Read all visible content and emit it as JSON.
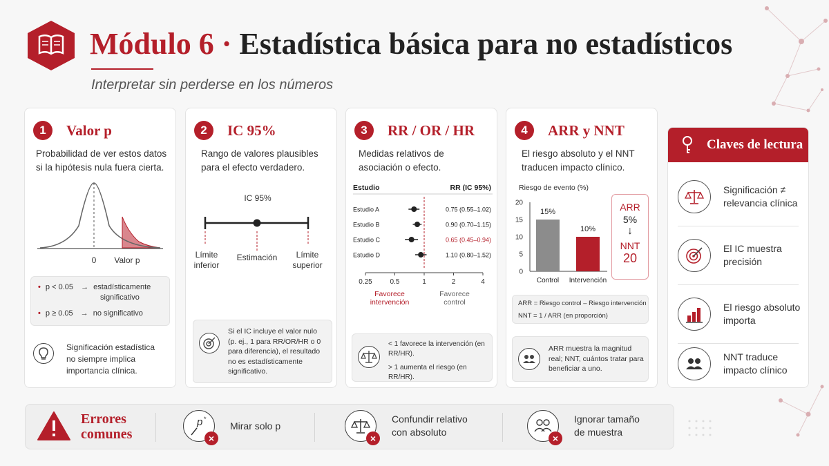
{
  "header": {
    "module": "Módulo 6",
    "separator": "·",
    "title": "Estadística básica para no estadísticos",
    "subtitle": "Interpretar sin perderse en los números",
    "icon": "open-book-icon"
  },
  "colors": {
    "accent": "#b41f2a",
    "grey_bar": "#8c8c8c"
  },
  "cards": [
    {
      "number": "1",
      "title": "Valor p",
      "description": "Probabilidad de ver estos datos si la hipótesis nula fuera cierta.",
      "axis_zero": "0",
      "axis_p": "Valor p",
      "rules": [
        {
          "condition": "p < 0.05",
          "arrow": "→",
          "result_line1": "estadísticamente",
          "result_line2": "significativo"
        },
        {
          "condition": "p ≥ 0.05",
          "arrow": "→",
          "result_line1": "no significativo",
          "result_line2": ""
        }
      ],
      "note": "Significación estadística no siempre implica importancia clínica.",
      "note_icon": "lightbulb-icon"
    },
    {
      "number": "2",
      "title": "IC 95%",
      "description": "Rango de valores plausibles para el efecto verdadero.",
      "ci_label": "IC 95%",
      "lower_label_1": "Límite",
      "lower_label_2": "inferior",
      "estimate_label": "Estimación",
      "upper_label_1": "Límite",
      "upper_label_2": "superior",
      "note": "Si el IC incluye el valor nulo (p. ej., 1 para RR/OR/HR o 0 para diferencia), el resultado no es estadísticamente significativo.",
      "note_icon": "target-icon"
    },
    {
      "number": "3",
      "title": "RR / OR / HR",
      "description": "Medidas relativos de asociación o efecto.",
      "col_study": "Estudio",
      "col_effect": "RR (IC 95%)",
      "ticks": [
        "0.25",
        "0.5",
        "1",
        "2",
        "4"
      ],
      "favors_left_1": "Favorece",
      "favors_left_2": "intervención",
      "favors_right_1": "Favorece",
      "favors_right_2": "control",
      "notes": [
        "< 1 favorece la intervención (en RR/HR).",
        "> 1 aumenta el riesgo (en RR/HR)."
      ],
      "note_icon": "balance-scale-icon"
    },
    {
      "number": "4",
      "title": "ARR y NNT",
      "description": "El riesgo absoluto y el NNT traducen impacto clínico.",
      "arr_label": "ARR",
      "arr_value": "5%",
      "arr_arrow": "↓",
      "nnt_label": "NNT",
      "nnt_value": "20",
      "formula_1": "ARR = Riesgo control – Riesgo intervención",
      "formula_2": "NNT = 1 / ARR (en proporción)",
      "note": "ARR muestra la magnitud real; NNT, cuántos tratar para beneficiar a uno.",
      "note_icon": "people-icon"
    }
  ],
  "chart_data": [
    {
      "type": "scatter",
      "subtype": "forest-plot",
      "scale": "log",
      "xlim": [
        0.25,
        4
      ],
      "null_value": 1,
      "studies": [
        {
          "name": "Estudio A",
          "estimate": 0.75,
          "lower": 0.55,
          "upper": 1.02,
          "label": "0.75 (0.55–1.02)",
          "highlight": false
        },
        {
          "name": "Estudio B",
          "estimate": 0.9,
          "lower": 0.7,
          "upper": 1.15,
          "label": "0.90 (0.70–1.15)",
          "highlight": false
        },
        {
          "name": "Estudio C",
          "estimate": 0.65,
          "lower": 0.45,
          "upper": 0.94,
          "label": "0.65 (0.45–0.94)",
          "highlight": true
        },
        {
          "name": "Estudio D",
          "estimate": 1.1,
          "lower": 0.8,
          "upper": 1.52,
          "label": "1.10 (0.80–1.52)",
          "highlight": false
        }
      ]
    },
    {
      "type": "bar",
      "title": "Riesgo de evento (%)",
      "categories": [
        "Control",
        "Intervención"
      ],
      "values": [
        15,
        10
      ],
      "value_labels": [
        "15%",
        "10%"
      ],
      "ylim": [
        0,
        20
      ],
      "yticks": [
        "0",
        "5",
        "10",
        "15",
        "20"
      ],
      "colors": [
        "#8c8c8c",
        "#b41f2a"
      ]
    }
  ],
  "claves": {
    "title": "Claves de lectura",
    "icon": "key-icon",
    "items": [
      {
        "text": "Significación ≠ relevancia clínica",
        "icon": "balance-scale-icon"
      },
      {
        "text": "El IC muestra precisión",
        "icon": "target-icon"
      },
      {
        "text": "El riesgo absoluto importa",
        "icon": "bar-chart-icon"
      },
      {
        "text": "NNT traduce impacto clínico",
        "icon": "people-icon"
      }
    ]
  },
  "errors": {
    "title_1": "Errores",
    "title_2": "comunes",
    "icon": "warning-icon",
    "items": [
      {
        "text_1": "Mirar solo p",
        "text_2": "",
        "icon": "p-value-icon"
      },
      {
        "text_1": "Confundir relativo",
        "text_2": "con absoluto",
        "icon": "balance-scale-icon"
      },
      {
        "text_1": "Ignorar tamaño",
        "text_2": "de muestra",
        "icon": "people-icon"
      }
    ],
    "x_mark": "×"
  }
}
